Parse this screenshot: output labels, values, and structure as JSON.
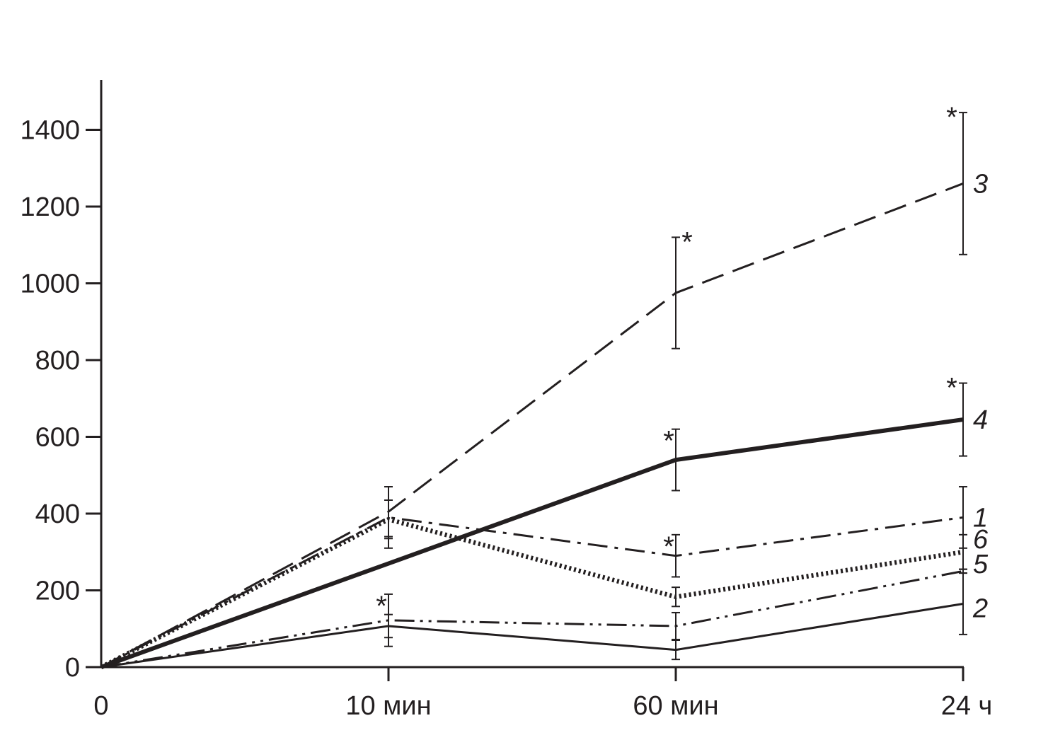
{
  "chart_data": {
    "type": "line",
    "categories": [
      "0",
      "10 мин",
      "60 мин",
      "24 ч"
    ],
    "yticks": [
      0,
      200,
      400,
      600,
      800,
      1000,
      1200,
      1400
    ],
    "ylim": [
      0,
      1530
    ],
    "grid": false,
    "legend": "inline labels at line ends",
    "series": [
      {
        "name": "1",
        "style": "dashdot",
        "values": [
          0,
          390,
          290,
          390
        ],
        "err": [
          0,
          80,
          55,
          80
        ],
        "stars": [
          false,
          false,
          true,
          false
        ]
      },
      {
        "name": "2",
        "style": "solid-thin",
        "values": [
          0,
          107,
          45,
          165
        ],
        "err": [
          0,
          30,
          25,
          80
        ],
        "stars": [
          false,
          false,
          false,
          false
        ]
      },
      {
        "name": "3",
        "style": "dashed",
        "values": [
          0,
          405,
          975,
          1260
        ],
        "err": [
          0,
          65,
          145,
          185
        ],
        "stars": [
          false,
          false,
          true,
          true
        ]
      },
      {
        "name": "4",
        "style": "solid-thick",
        "values": [
          0,
          270,
          540,
          645
        ],
        "err": [
          0,
          0,
          80,
          95
        ],
        "stars": [
          false,
          false,
          true,
          true
        ]
      },
      {
        "name": "5",
        "style": "dashdotdot",
        "values": [
          0,
          122,
          107,
          250
        ],
        "err": [
          0,
          68,
          35,
          5
        ],
        "stars": [
          false,
          true,
          false,
          false
        ]
      },
      {
        "name": "6",
        "style": "dotted",
        "values": [
          0,
          385,
          183,
          300
        ],
        "err": [
          0,
          50,
          25,
          45
        ],
        "stars": [
          false,
          false,
          false,
          false
        ]
      }
    ],
    "colors": {
      "ink": "#231f20",
      "background": "#ffffff"
    }
  }
}
